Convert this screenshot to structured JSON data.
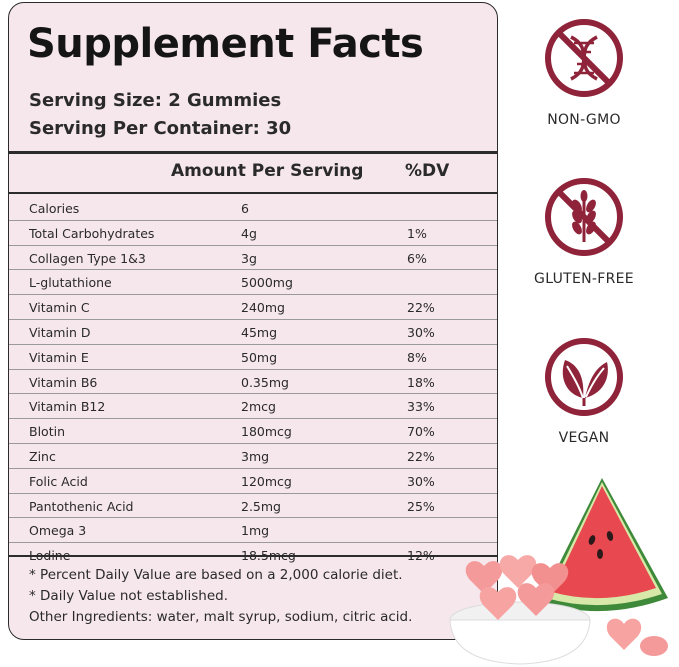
{
  "title": "Supplement Facts",
  "serving_size": "Serving Size: 2 Gummies",
  "servings_per_container": "Serving Per Container: 30",
  "columns": {
    "amount": "Amount Per Serving",
    "dv": "%DV"
  },
  "rows": [
    {
      "name": "Calories",
      "amount": "6",
      "dv": ""
    },
    {
      "name": "Total Carbohydrates",
      "amount": "4g",
      "dv": "1%"
    },
    {
      "name": "Collagen Type 1&3",
      "amount": "3g",
      "dv": "6%"
    },
    {
      "name": "L-glutathione",
      "amount": "5000mg",
      "dv": ""
    },
    {
      "name": "Vitamin C",
      "amount": "240mg",
      "dv": "22%"
    },
    {
      "name": "Vitamin D",
      "amount": "45mg",
      "dv": "30%"
    },
    {
      "name": "Vitamin E",
      "amount": "50mg",
      "dv": "8%"
    },
    {
      "name": "Vitamin B6",
      "amount": "0.35mg",
      "dv": "18%"
    },
    {
      "name": "Vitamin B12",
      "amount": "2mcg",
      "dv": "33%"
    },
    {
      "name": "Blotin",
      "amount": "180mcg",
      "dv": "70%"
    },
    {
      "name": "Zinc",
      "amount": "3mg",
      "dv": "22%"
    },
    {
      "name": "Folic Acid",
      "amount": "120mcg",
      "dv": "30%"
    },
    {
      "name": "Pantothenic Acid",
      "amount": "2.5mg",
      "dv": "25%"
    },
    {
      "name": "Omega 3",
      "amount": "1mg",
      "dv": ""
    },
    {
      "name": "Lodine",
      "amount": "18.5mcg",
      "dv": "12%"
    }
  ],
  "footnotes": [
    "* Percent Daily Value are based on a 2,000 calorie diet.",
    "* Daily Value not established.",
    "Other Ingredients: water, malt syrup, sodium, citric acid."
  ],
  "badges": [
    {
      "label": "NON-GMO",
      "icon": "dna-icon"
    },
    {
      "label": "GLUTEN-FREE",
      "icon": "wheat-icon"
    },
    {
      "label": "VEGAN",
      "icon": "leaf-icon"
    }
  ],
  "accent_color": "#8e2339"
}
